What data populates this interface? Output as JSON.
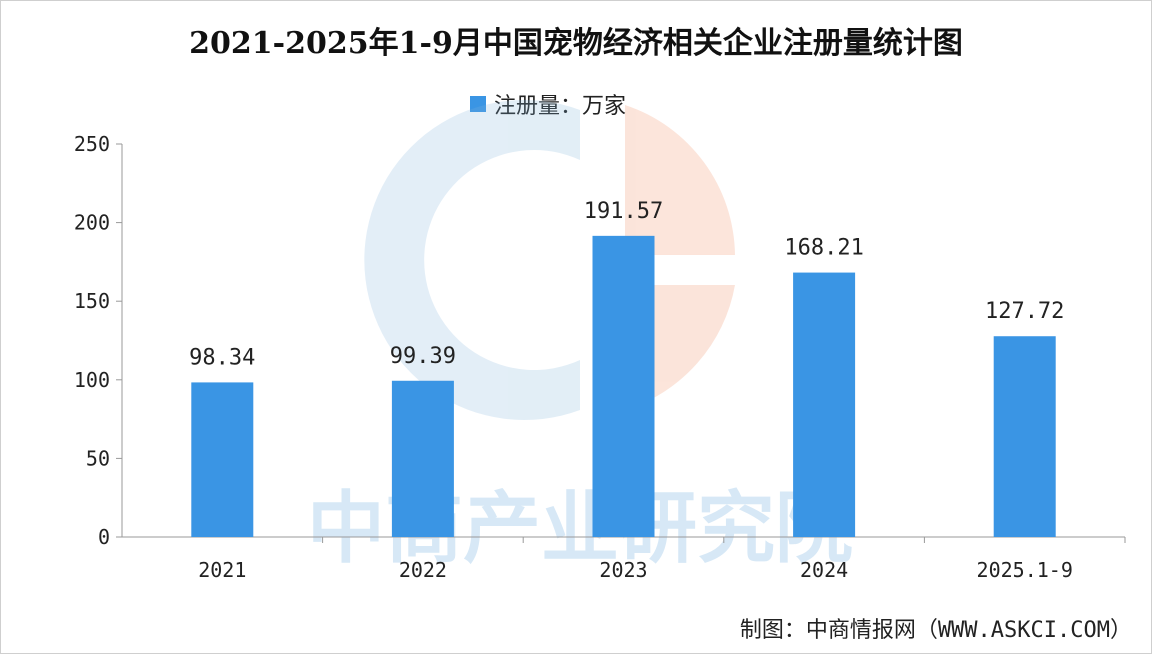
{
  "chart_data": {
    "type": "bar",
    "title": "2021-2025年1-9月中国宠物经济相关企业注册量统计图",
    "categories": [
      "2021",
      "2022",
      "2023",
      "2024",
      "2025.1-9"
    ],
    "series": [
      {
        "name": "注册量：万家",
        "values": [
          98.34,
          99.39,
          191.57,
          168.21,
          127.72
        ]
      }
    ],
    "data_labels": [
      "98.34",
      "99.39",
      "191.57",
      "168.21",
      "127.72"
    ],
    "y_ticks": [
      "0",
      "50",
      "100",
      "150",
      "200",
      "250"
    ],
    "ylim": [
      0,
      250
    ],
    "grid": false,
    "legend_position": "top-center",
    "bar_color": "#3a95e4"
  },
  "source": "制图：中商情报网（WWW.ASKCI.COM）",
  "watermark": "中商产业研究院"
}
